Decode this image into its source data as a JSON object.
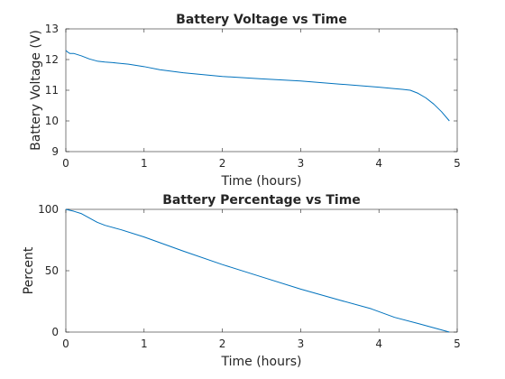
{
  "chart_data": [
    {
      "type": "line",
      "title": "Battery Voltage vs Time",
      "xlabel": "Time (hours)",
      "ylabel": "Battery Voltage (V)",
      "xlim": [
        0,
        5
      ],
      "ylim": [
        9,
        13
      ],
      "xticks": [
        "0",
        "1",
        "2",
        "3",
        "4",
        "5"
      ],
      "yticks": [
        "9",
        "10",
        "11",
        "12",
        "13"
      ],
      "grid": false,
      "color": "#0072BD",
      "series": [
        {
          "x": [
            0,
            0.02,
            0.05,
            0.1,
            0.2,
            0.3,
            0.4,
            0.5,
            0.6,
            0.8,
            1.0,
            1.2,
            1.5,
            2.0,
            2.5,
            3.0,
            3.5,
            4.0,
            4.2,
            4.3,
            4.4,
            4.5,
            4.6,
            4.7,
            4.8,
            4.9
          ],
          "values": [
            12.3,
            12.25,
            12.2,
            12.2,
            12.12,
            12.02,
            11.95,
            11.92,
            11.9,
            11.85,
            11.77,
            11.67,
            11.57,
            11.45,
            11.37,
            11.3,
            11.2,
            11.1,
            11.05,
            11.03,
            11.0,
            10.9,
            10.75,
            10.55,
            10.3,
            10.0
          ]
        }
      ]
    },
    {
      "type": "line",
      "title": "Battery Percentage vs Time",
      "xlabel": "Time (hours)",
      "ylabel": "Percent",
      "xlim": [
        0,
        5
      ],
      "ylim": [
        0,
        100
      ],
      "xticks": [
        "0",
        "1",
        "2",
        "3",
        "4",
        "5"
      ],
      "yticks": [
        "0",
        "50",
        "100"
      ],
      "grid": false,
      "color": "#0072BD",
      "series": [
        {
          "x": [
            0,
            0.1,
            0.2,
            0.3,
            0.4,
            0.5,
            0.7,
            1.0,
            1.5,
            2.0,
            2.5,
            3.0,
            3.5,
            3.9,
            4.2,
            4.5,
            4.9
          ],
          "values": [
            100,
            98.5,
            96.5,
            93,
            89.5,
            87,
            83.5,
            77.5,
            66,
            55,
            45,
            35,
            26,
            19,
            12,
            7,
            0
          ]
        }
      ]
    }
  ]
}
